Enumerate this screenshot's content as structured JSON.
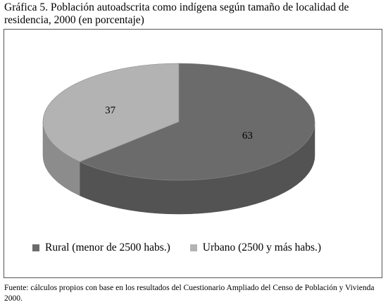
{
  "chart_data": {
    "type": "pie",
    "style": "3d",
    "title": "Gráfica 5. Población autoadscrita como indígena según tamaño de localidad de residencia, 2000 (en porcentaje)",
    "categories": [
      "Rural (menor de 2500 habs.)",
      "Urbano (2500 y más habs.)"
    ],
    "values": [
      63,
      37
    ],
    "data_labels": [
      "63",
      "37"
    ],
    "colors": [
      "#6b6b6b",
      "#b3b3b3"
    ],
    "legend_position": "bottom-left"
  },
  "source_note": "Fuente: cálculos propios con base en los resultados del Cuestionario Ampliado del Censo de Población y Vivienda 2000."
}
